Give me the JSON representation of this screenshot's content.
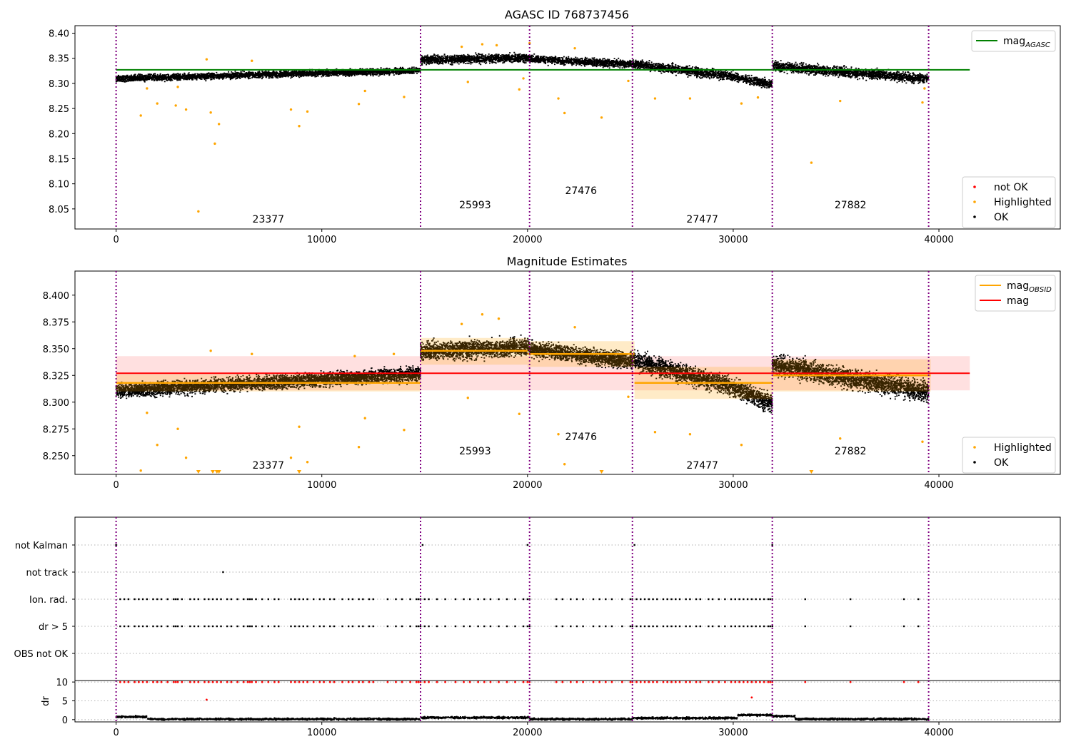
{
  "chart_data": [
    {
      "type": "scatter",
      "title": "AGASC ID 768737456",
      "xlim": [
        -2000,
        45900
      ],
      "ylim": [
        8.01,
        8.415
      ],
      "xticks": [
        0,
        10000,
        20000,
        30000,
        40000
      ],
      "yticks": [
        8.05,
        8.1,
        8.15,
        8.2,
        8.25,
        8.3,
        8.35,
        8.4
      ],
      "legend_top": {
        "position": "top-right",
        "entries": [
          {
            "label": "mag",
            "sub": "AGASC",
            "color": "#008000"
          }
        ]
      },
      "legend_bottom": {
        "position": "bottom-right",
        "entries": [
          {
            "label": "not OK",
            "color": "#ff0000"
          },
          {
            "label": "Highlighted",
            "color": "#ffa500"
          },
          {
            "label": "OK",
            "color": "#000000"
          }
        ]
      },
      "mag_agasc": 8.327,
      "highlighted_points": [
        [
          4000,
          8.045
        ],
        [
          4800,
          8.18
        ],
        [
          4600,
          8.242
        ],
        [
          1200,
          8.236
        ],
        [
          5000,
          8.219
        ],
        [
          3400,
          8.248
        ],
        [
          8900,
          8.215
        ],
        [
          9300,
          8.244
        ],
        [
          8500,
          8.248
        ],
        [
          2000,
          8.26
        ],
        [
          2900,
          8.256
        ],
        [
          11800,
          8.259
        ],
        [
          3000,
          8.293
        ],
        [
          1500,
          8.29
        ],
        [
          14000,
          8.273
        ],
        [
          12100,
          8.285
        ],
        [
          4400,
          8.348
        ],
        [
          6600,
          8.345
        ],
        [
          17100,
          8.303
        ],
        [
          19600,
          8.288
        ],
        [
          21500,
          8.27
        ],
        [
          21800,
          8.241
        ],
        [
          23600,
          8.232
        ],
        [
          26200,
          8.27
        ],
        [
          27900,
          8.27
        ],
        [
          30400,
          8.26
        ],
        [
          31200,
          8.272
        ],
        [
          33800,
          8.142
        ],
        [
          35200,
          8.265
        ],
        [
          39200,
          8.262
        ],
        [
          20100,
          8.38
        ],
        [
          17800,
          8.378
        ],
        [
          18500,
          8.376
        ],
        [
          22300,
          8.37
        ],
        [
          24900,
          8.305
        ],
        [
          19800,
          8.31
        ],
        [
          39300,
          8.29
        ],
        [
          16800,
          8.373
        ]
      ]
    },
    {
      "type": "scatter",
      "title": "Magnitude Estimates",
      "xlim": [
        -2000,
        45900
      ],
      "ylim": [
        8.2325,
        8.4225
      ],
      "xticks": [
        0,
        10000,
        20000,
        30000,
        40000
      ],
      "yticks": [
        8.25,
        8.275,
        8.3,
        8.325,
        8.35,
        8.375,
        8.4
      ],
      "legend_top": {
        "position": "top-right",
        "entries": [
          {
            "label": "mag",
            "sub": "OBSID",
            "color": "#ffa500"
          },
          {
            "label": "mag",
            "color": "#ff0000"
          }
        ]
      },
      "legend_bottom": {
        "position": "bottom-right",
        "entries": [
          {
            "label": "Highlighted",
            "color": "#ffa500"
          },
          {
            "label": "OK",
            "color": "#000000"
          }
        ]
      },
      "mag": 8.327,
      "mag_band": [
        8.311,
        8.343
      ],
      "obsid_levels": [
        {
          "x": [
            0,
            14800
          ],
          "mag": 8.318,
          "band": [
            8.31,
            8.326
          ]
        },
        {
          "x": [
            14800,
            20000
          ],
          "mag": 8.348,
          "band": [
            8.335,
            8.36
          ]
        },
        {
          "x": [
            20000,
            25200
          ],
          "mag": 8.345,
          "band": [
            8.333,
            8.357
          ]
        },
        {
          "x": [
            25200,
            31900
          ],
          "mag": 8.318,
          "band": [
            8.303,
            8.333
          ]
        },
        {
          "x": [
            31900,
            39600
          ],
          "mag": 8.325,
          "band": [
            8.31,
            8.34
          ]
        }
      ],
      "highlighted_points": [
        [
          4600,
          8.348
        ],
        [
          6600,
          8.345
        ],
        [
          1200,
          8.236
        ],
        [
          2000,
          8.26
        ],
        [
          3400,
          8.248
        ],
        [
          3000,
          8.275
        ],
        [
          8500,
          8.248
        ],
        [
          8900,
          8.277
        ],
        [
          9300,
          8.244
        ],
        [
          11800,
          8.258
        ],
        [
          12100,
          8.285
        ],
        [
          14000,
          8.274
        ],
        [
          17100,
          8.304
        ],
        [
          19600,
          8.289
        ],
        [
          21500,
          8.27
        ],
        [
          21800,
          8.242
        ],
        [
          26200,
          8.272
        ],
        [
          27900,
          8.27
        ],
        [
          30400,
          8.26
        ],
        [
          35200,
          8.266
        ],
        [
          39200,
          8.263
        ],
        [
          1500,
          8.29
        ],
        [
          17800,
          8.382
        ],
        [
          18600,
          8.378
        ],
        [
          16800,
          8.373
        ],
        [
          22300,
          8.37
        ],
        [
          24900,
          8.305
        ],
        [
          11600,
          8.343
        ],
        [
          13500,
          8.345
        ]
      ],
      "clipped_points": [
        4000,
        4700,
        4900,
        5000,
        8900,
        23600,
        33800
      ]
    },
    {
      "type": "scatter",
      "xlim": [
        -2000,
        45900
      ],
      "categories": [
        "not Kalman",
        "not track",
        "Ion. rad.",
        "dr > 5",
        "OBS not OK"
      ],
      "flag_points": {
        "not Kalman": [
          0,
          14900,
          20000,
          25200,
          31900
        ],
        "not track": [
          5200
        ],
        "Ion. rad.": [
          200,
          400,
          600,
          900,
          1100,
          1300,
          1500,
          1800,
          2000,
          2200,
          2500,
          2800,
          2900,
          3000,
          3200,
          3600,
          3800,
          4000,
          4300,
          4500,
          4700,
          4900,
          5100,
          5400,
          5600,
          5900,
          6200,
          6400,
          6500,
          6600,
          6800,
          7100,
          7400,
          7700,
          7900,
          8500,
          8700,
          8900,
          9100,
          9300,
          9600,
          9900,
          10100,
          10400,
          10600,
          11000,
          11300,
          11500,
          11800,
          12000,
          12300,
          12500,
          13200,
          13600,
          13900,
          14300,
          14600,
          14700,
          14800,
          15000,
          15200,
          15600,
          16000,
          16500,
          16900,
          17200,
          17600,
          17900,
          18200,
          18600,
          19000,
          19400,
          19800,
          20000,
          20100,
          21400,
          21700,
          22100,
          22400,
          22700,
          23200,
          23500,
          23800,
          24100,
          24600,
          25000,
          25100,
          25300,
          25500,
          25700,
          25900,
          26100,
          26300,
          26600,
          26800,
          27000,
          27200,
          27400,
          27700,
          27900,
          28200,
          28400,
          28800,
          29000,
          29300,
          29600,
          29900,
          30100,
          30300,
          30500,
          30700,
          30900,
          31100,
          31300,
          31500,
          31700,
          31800,
          31900,
          33500,
          35700,
          38300,
          39000
        ],
        "dr > 5": [
          200,
          400,
          600,
          900,
          1100,
          1300,
          1500,
          1800,
          2000,
          2200,
          2500,
          2800,
          2900,
          3000,
          3200,
          3600,
          3800,
          4000,
          4300,
          4500,
          4700,
          4900,
          5100,
          5400,
          5600,
          5900,
          6200,
          6400,
          6500,
          6600,
          6800,
          7100,
          7400,
          7700,
          7900,
          8500,
          8700,
          8900,
          9100,
          9300,
          9600,
          9900,
          10100,
          10400,
          10600,
          11000,
          11300,
          11500,
          11800,
          12000,
          12300,
          12500,
          13200,
          13600,
          13900,
          14300,
          14600,
          14700,
          14800,
          15000,
          15200,
          15600,
          16000,
          16500,
          16900,
          17200,
          17600,
          17900,
          18200,
          18600,
          19000,
          19400,
          19800,
          20000,
          20100,
          21400,
          21700,
          22100,
          22400,
          22700,
          23200,
          23500,
          23800,
          24100,
          24600,
          25000,
          25100,
          25300,
          25500,
          25700,
          25900,
          26100,
          26300,
          26600,
          26800,
          27000,
          27200,
          27400,
          27700,
          27900,
          28200,
          28400,
          28800,
          29000,
          29300,
          29600,
          29900,
          30100,
          30300,
          30500,
          30700,
          30900,
          31100,
          31300,
          31500,
          31700,
          31800,
          31900,
          33500,
          35700,
          38300,
          39000
        ],
        "OBS not OK": []
      }
    },
    {
      "type": "scatter",
      "ylabel": "dr",
      "xlim": [
        -2000,
        45900
      ],
      "ylim": [
        -0.6,
        10.4
      ],
      "xticks": [
        0,
        10000,
        20000,
        30000,
        40000
      ],
      "yticks": [
        0,
        5,
        10
      ],
      "red_at_10": [
        200,
        400,
        600,
        900,
        1100,
        1300,
        1500,
        1800,
        2000,
        2200,
        2500,
        2800,
        2900,
        3000,
        3200,
        3600,
        3800,
        4000,
        4300,
        4500,
        4700,
        4900,
        5100,
        5400,
        5600,
        5900,
        6200,
        6400,
        6500,
        6600,
        6800,
        7100,
        7400,
        7700,
        7900,
        8500,
        8700,
        8900,
        9100,
        9300,
        9600,
        9900,
        10100,
        10400,
        10600,
        11000,
        11300,
        11500,
        11800,
        12000,
        12300,
        12500,
        13200,
        13600,
        13900,
        14300,
        14600,
        14700,
        14800,
        15000,
        15200,
        15600,
        16000,
        16500,
        16900,
        17200,
        17600,
        17900,
        18200,
        18600,
        19000,
        19400,
        19800,
        20000,
        20100,
        21400,
        21700,
        22100,
        22400,
        22700,
        23200,
        23500,
        23800,
        24100,
        24600,
        25000,
        25100,
        25300,
        25500,
        25700,
        25900,
        26100,
        26300,
        26600,
        26800,
        27000,
        27200,
        27400,
        27700,
        27900,
        28200,
        28400,
        28800,
        29000,
        29300,
        29600,
        29900,
        30100,
        30300,
        30500,
        30700,
        30900,
        31100,
        31300,
        31500,
        31700,
        31800,
        31900,
        33500,
        35700,
        38300,
        39000
      ],
      "red_other": [
        [
          4400,
          5.3
        ],
        [
          30900,
          5.9
        ]
      ]
    }
  ],
  "observations": [
    {
      "label": "23377",
      "start": 0,
      "end": 14800,
      "row": 2
    },
    {
      "label": "25993",
      "start": 14800,
      "end": 20100,
      "row": 1
    },
    {
      "label": "27476",
      "start": 20100,
      "end": 25100,
      "row": 0
    },
    {
      "label": "27477",
      "start": 25100,
      "end": 31900,
      "row": 2
    },
    {
      "label": "27882",
      "start": 31900,
      "end": 39500,
      "row": 1
    }
  ],
  "obs_boundaries": [
    0,
    14800,
    20100,
    25100,
    31900,
    39500
  ],
  "colors": {
    "ok": "#000000",
    "highlighted": "#ffa500",
    "not_ok": "#ff0000",
    "mag_agasc": "#008000",
    "mag": "#ff0000",
    "mag_obsid": "#ffa500",
    "boundary": "#800080",
    "grid": "#b0b0b0"
  }
}
